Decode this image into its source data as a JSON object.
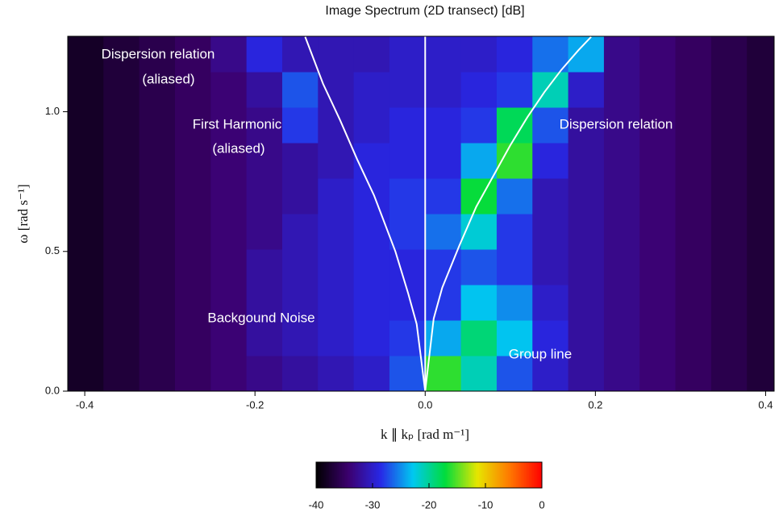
{
  "chart_data": {
    "type": "heatmap",
    "title": "Image Spectrum (2D transect) [dB]",
    "xlabel": "k ∥ kₚ [rad m⁻¹]",
    "ylabel": "ω [rad s⁻¹]",
    "xlim": [
      -0.42,
      0.41
    ],
    "ylim": [
      0,
      1.27
    ],
    "xticks": [
      -0.4,
      -0.2,
      {
        "value": 0,
        "label": "0.0"
      },
      0.2,
      0.4
    ],
    "yticks": [
      {
        "value": 0,
        "label": "0.0"
      },
      0.5,
      {
        "value": 1,
        "label": "1.0"
      }
    ],
    "xbins": [
      -0.42,
      -0.378,
      -0.336,
      -0.294,
      -0.252,
      -0.21,
      -0.168,
      -0.126,
      -0.084,
      -0.042,
      0,
      0.042,
      0.084,
      0.126,
      0.168,
      0.21,
      0.252,
      0.294,
      0.336,
      0.378,
      0.42
    ],
    "ybins": [
      0,
      0.127,
      0.254,
      0.381,
      0.508,
      0.635,
      0.762,
      0.889,
      1.016,
      1.143,
      1.27
    ],
    "z": [
      [
        -38,
        -37,
        -36,
        -35,
        -34,
        -33,
        -32,
        -31,
        -30,
        -27,
        -16,
        -21,
        -27,
        -30,
        -32,
        -33,
        -34,
        -35,
        -36,
        -37
      ],
      [
        -38,
        -37,
        -36,
        -35,
        -34,
        -32,
        -31,
        -30,
        -29,
        -28,
        -24,
        -19,
        -23,
        -29,
        -32,
        -33,
        -34,
        -35,
        -36,
        -37
      ],
      [
        -38,
        -37,
        -36,
        -35,
        -34,
        -32,
        -31,
        -30,
        -29,
        -29,
        -28,
        -23,
        -25,
        -30,
        -32,
        -33,
        -34,
        -35,
        -36,
        -37
      ],
      [
        -38,
        -37,
        -36,
        -35,
        -34,
        -32,
        -31,
        -30,
        -29,
        -29,
        -28,
        -27,
        -28,
        -31,
        -32,
        -33,
        -34,
        -35,
        -36,
        -37
      ],
      [
        -38,
        -37,
        -36,
        -35,
        -34,
        -33,
        -31,
        -30,
        -29,
        -28,
        -26,
        -22,
        -28,
        -31,
        -32,
        -33,
        -34,
        -35,
        -36,
        -37
      ],
      [
        -38,
        -37,
        -36,
        -35,
        -34,
        -33,
        -32,
        -30,
        -29,
        -28,
        -28,
        -17,
        -26,
        -31,
        -32,
        -33,
        -34,
        -35,
        -36,
        -37
      ],
      [
        -38,
        -37,
        -36,
        -35,
        -34,
        -33,
        -32,
        -31,
        -29,
        -29,
        -29,
        -24,
        -16,
        -29,
        -32,
        -33,
        -34,
        -35,
        -36,
        -37
      ],
      [
        -38,
        -37,
        -36,
        -35,
        -34,
        -33,
        -28,
        -31,
        -30,
        -29,
        -29,
        -28,
        -18,
        -27,
        -32,
        -33,
        -34,
        -35,
        -36,
        -37
      ],
      [
        -38,
        -37,
        -36,
        -35,
        -34,
        -32,
        -27,
        -31,
        -30,
        -30,
        -30,
        -29,
        -28,
        -21,
        -30,
        -33,
        -34,
        -35,
        -36,
        -37
      ],
      [
        -38,
        -37,
        -36,
        -35,
        -33,
        -29,
        -31,
        -31,
        -31,
        -30,
        -30,
        -30,
        -29,
        -26,
        -24,
        -33,
        -34,
        -35,
        -36,
        -37
      ]
    ],
    "colormap": [
      "#000000",
      "#3c006e",
      "#2828e6",
      "#00c8f0",
      "#00dc3c",
      "#e6e600",
      "#ff7800",
      "#ff0000"
    ],
    "clim": [
      -40,
      0
    ],
    "cticks": [
      -40,
      -30,
      -20,
      -10,
      0
    ],
    "series": [
      {
        "color": "#ffffff",
        "x": [
          0,
          0.01,
          0.02,
          0.04,
          0.06,
          0.08,
          0.1,
          0.12,
          0.14,
          0.16,
          0.18,
          0.195
        ],
        "values": [
          0,
          0.26,
          0.37,
          0.52,
          0.66,
          0.77,
          0.88,
          0.98,
          1.07,
          1.15,
          1.22,
          1.268
        ]
      },
      {
        "color": "#ffffff",
        "x": [
          0,
          -0.01,
          -0.02,
          -0.035,
          -0.06,
          -0.08,
          -0.1,
          -0.12,
          -0.141
        ],
        "values": [
          0,
          0.24,
          0.35,
          0.5,
          0.7,
          0.83,
          0.97,
          1.1,
          1.268
        ]
      },
      {
        "color": "#ffffff",
        "x": [
          0,
          0
        ],
        "values": [
          0,
          1.27
        ]
      }
    ],
    "annotations": [
      "Dispersion relation",
      "(aliased)",
      "First Harmonic",
      "(aliased)",
      "Dispersion relation",
      "Backgound Noise",
      "Group line"
    ]
  }
}
